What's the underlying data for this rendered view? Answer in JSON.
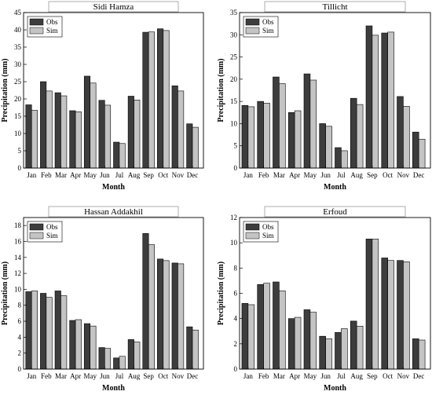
{
  "colors": {
    "obs": "#3d3d3d",
    "sim": "#c4c4c4",
    "frame": "#000000",
    "title_box": "#9a9a9a"
  },
  "chart_data": [
    {
      "type": "bar",
      "title": "Sidi Hamza",
      "xlabel": "Month",
      "ylabel": "Precipitation (mm)",
      "ylim": [
        0,
        45
      ],
      "yticks": [
        "0",
        "5",
        "10",
        "15",
        "20",
        "25",
        "30",
        "35",
        "40",
        "45"
      ],
      "categories": [
        "Jan",
        "Feb",
        "Mar",
        "Apr",
        "May",
        "Jun",
        "Jul",
        "Aug",
        "Sep",
        "Oct",
        "Nov",
        "Dec"
      ],
      "legend_position": "top-left",
      "series": [
        {
          "name": "Obs",
          "values": [
            18.3,
            25.0,
            21.8,
            16.6,
            26.6,
            19.6,
            7.5,
            20.8,
            39.3,
            40.3,
            23.8,
            12.8
          ]
        },
        {
          "name": "Sim",
          "values": [
            16.7,
            22.3,
            20.9,
            16.3,
            24.6,
            18.2,
            7.1,
            19.7,
            39.4,
            39.8,
            22.3,
            11.8
          ]
        }
      ]
    },
    {
      "type": "bar",
      "title": "Tillicht",
      "xlabel": "Month",
      "ylabel": "Precipitation (mm)",
      "ylim": [
        0,
        35
      ],
      "yticks": [
        "0",
        "5",
        "10",
        "15",
        "20",
        "25",
        "30",
        "35"
      ],
      "categories": [
        "Jan",
        "Feb",
        "Mar",
        "Apr",
        "May",
        "Jun",
        "Jul",
        "Aug",
        "Sep",
        "Oct",
        "Nov",
        "Dec"
      ],
      "legend_position": "top-left",
      "series": [
        {
          "name": "Obs",
          "values": [
            14.1,
            15.0,
            20.5,
            12.5,
            21.2,
            10.0,
            4.6,
            15.7,
            32.0,
            30.4,
            16.1,
            8.1
          ]
        },
        {
          "name": "Sim",
          "values": [
            13.8,
            14.6,
            19.0,
            12.9,
            19.8,
            9.4,
            3.9,
            14.3,
            29.9,
            30.6,
            13.9,
            6.5
          ]
        }
      ]
    },
    {
      "type": "bar",
      "title": "Hassan Addakhil",
      "xlabel": "Month",
      "ylabel": "Precipitation (mm)",
      "ylim": [
        0,
        19
      ],
      "yticks": [
        "0",
        "2",
        "4",
        "6",
        "8",
        "10",
        "12",
        "14",
        "16",
        "18"
      ],
      "categories": [
        "Jan",
        "Feb",
        "Mar",
        "Apr",
        "May",
        "Jun",
        "Jul",
        "Aug",
        "Sep",
        "Oct",
        "Nov",
        "Dec"
      ],
      "legend_position": "top-left",
      "series": [
        {
          "name": "Obs",
          "values": [
            9.7,
            9.5,
            9.8,
            6.1,
            5.7,
            2.7,
            1.4,
            3.7,
            17.0,
            13.8,
            13.3,
            5.3
          ]
        },
        {
          "name": "Sim",
          "values": [
            9.8,
            9.0,
            9.2,
            6.2,
            5.4,
            2.6,
            1.6,
            3.4,
            15.6,
            13.6,
            13.2,
            4.9
          ]
        }
      ]
    },
    {
      "type": "bar",
      "title": "Erfoud",
      "xlabel": "Month",
      "ylabel": "Precipitation (mm)",
      "ylim": [
        0,
        12
      ],
      "yticks": [
        "0",
        "2",
        "4",
        "6",
        "8",
        "10",
        "12"
      ],
      "categories": [
        "Jan",
        "Feb",
        "Mar",
        "Apr",
        "May",
        "Jun",
        "Jul",
        "Aug",
        "Sep",
        "Oct",
        "Nov",
        "Dec"
      ],
      "legend_position": "top-left",
      "series": [
        {
          "name": "Obs",
          "values": [
            5.2,
            6.7,
            6.9,
            4.0,
            4.7,
            2.6,
            2.9,
            3.8,
            10.3,
            8.8,
            8.6,
            2.4
          ]
        },
        {
          "name": "Sim",
          "values": [
            5.1,
            6.8,
            6.2,
            4.1,
            4.5,
            2.4,
            3.2,
            3.4,
            10.3,
            8.6,
            8.5,
            2.3
          ]
        }
      ]
    }
  ]
}
